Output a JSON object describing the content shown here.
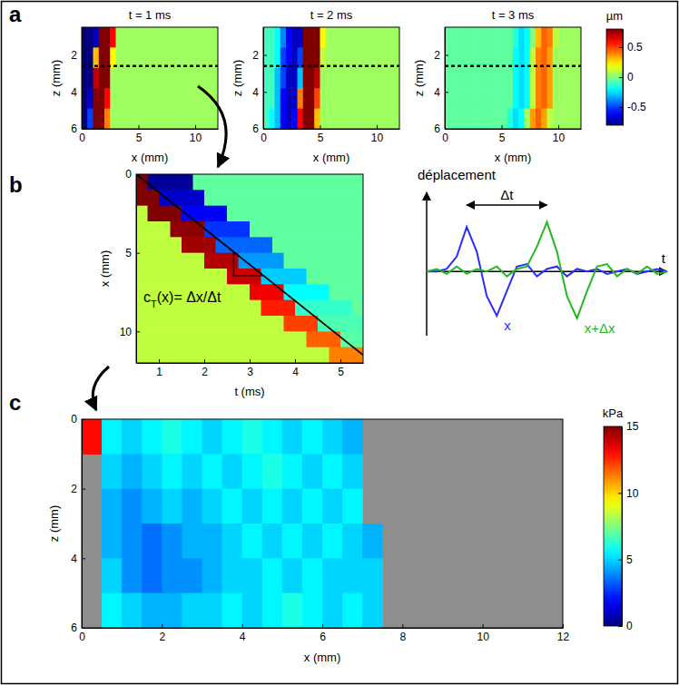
{
  "chart_data": [
    {
      "type": "heatmap",
      "panel": "a",
      "x_label": "x (mm)",
      "y_label": "z (mm)",
      "xlim": [
        0,
        12
      ],
      "ylim": [
        0.5,
        6
      ],
      "xticks": [
        0,
        5,
        10
      ],
      "yticks": [
        2,
        4,
        6
      ],
      "x": [
        0.25,
        0.75,
        1.25,
        1.75,
        2.25,
        2.75,
        3.25,
        3.75,
        4.25,
        4.75,
        5.25,
        5.75,
        6.25,
        6.75,
        7.25,
        7.75,
        8.25,
        8.75,
        9.25,
        9.75,
        10.25,
        10.75,
        11.25,
        11.75
      ],
      "y": [
        1.05,
        2.15,
        3.25,
        4.35,
        5.45
      ],
      "profile_z": 2.6,
      "colorbar": {
        "label": "µm",
        "range": [
          -0.8,
          0.8
        ],
        "ticks": [
          -0.5,
          0,
          0.5
        ]
      },
      "frames": [
        {
          "title": "t = 1 ms",
          "values": [
            [
              -0.8,
              -0.8,
              -0.7,
              0.8,
              0.8,
              0.6,
              0.05,
              0.05,
              0.05,
              0.05,
              0.05,
              0.05,
              0.05,
              0.05,
              0.05,
              0.05,
              0.05,
              0.05,
              0.05,
              0.05,
              0.05,
              0.05,
              0.05,
              0.05
            ],
            [
              -0.8,
              -0.8,
              0.3,
              0.8,
              0.8,
              0.2,
              0.05,
              0.05,
              0.05,
              0.05,
              0.05,
              0.05,
              0.05,
              0.05,
              0.05,
              0.05,
              0.05,
              0.05,
              0.05,
              0.05,
              0.05,
              0.05,
              0.05,
              0.05
            ],
            [
              -0.8,
              -0.8,
              0.7,
              0.8,
              0.8,
              0.05,
              0.05,
              0.05,
              0.05,
              0.05,
              0.05,
              0.05,
              0.05,
              0.05,
              0.05,
              0.05,
              0.05,
              0.05,
              0.05,
              0.05,
              0.05,
              0.05,
              0.05,
              0.05
            ],
            [
              -0.8,
              -0.7,
              0.8,
              0.8,
              0.6,
              0.05,
              0.05,
              0.05,
              0.05,
              0.05,
              0.05,
              0.05,
              0.05,
              0.05,
              0.05,
              0.05,
              0.05,
              0.05,
              0.05,
              0.05,
              0.05,
              0.05,
              0.05,
              0.05
            ],
            [
              -0.8,
              -0.5,
              0.8,
              0.8,
              0.4,
              0.05,
              0.05,
              0.05,
              0.05,
              0.05,
              0.05,
              0.05,
              0.05,
              0.05,
              0.05,
              0.05,
              0.05,
              0.05,
              0.05,
              0.05,
              0.05,
              0.05,
              0.05,
              0.05
            ]
          ]
        },
        {
          "title": "t = 2 ms",
          "values": [
            [
              -0.1,
              -0.1,
              -0.2,
              -0.4,
              -0.6,
              -0.7,
              -0.7,
              0.8,
              0.8,
              0.8,
              0.2,
              0.05,
              0.05,
              0.05,
              0.05,
              0.05,
              0.05,
              0.05,
              0.05,
              0.05,
              0.05,
              0.05,
              0.05,
              0.05
            ],
            [
              -0.1,
              -0.1,
              -0.2,
              -0.5,
              -0.6,
              -0.7,
              -0.5,
              0.8,
              0.8,
              0.8,
              0.1,
              0.05,
              0.05,
              0.05,
              0.05,
              0.05,
              0.05,
              0.05,
              0.05,
              0.05,
              0.05,
              0.05,
              0.05,
              0.05
            ],
            [
              -0.1,
              -0.1,
              -0.3,
              -0.5,
              -0.7,
              -0.7,
              -0.3,
              0.8,
              0.8,
              0.7,
              0.05,
              0.05,
              0.05,
              0.05,
              0.05,
              0.05,
              0.05,
              0.05,
              0.05,
              0.05,
              0.05,
              0.05,
              0.05,
              0.05
            ],
            [
              -0.1,
              -0.1,
              -0.3,
              -0.6,
              -0.7,
              -0.7,
              0.4,
              0.8,
              0.8,
              0.5,
              0.05,
              0.05,
              0.05,
              0.05,
              0.05,
              0.05,
              0.05,
              0.05,
              0.05,
              0.05,
              0.05,
              0.05,
              0.05,
              0.05
            ],
            [
              -0.1,
              -0.2,
              -0.3,
              -0.6,
              -0.7,
              -0.6,
              0.6,
              0.8,
              0.8,
              0.3,
              0.05,
              0.05,
              0.05,
              0.05,
              0.05,
              0.05,
              0.05,
              0.05,
              0.05,
              0.05,
              0.05,
              0.05,
              0.05,
              0.05
            ]
          ]
        },
        {
          "title": "t = 3 ms",
          "values": [
            [
              -0.05,
              -0.05,
              -0.05,
              -0.05,
              -0.05,
              -0.05,
              -0.05,
              -0.05,
              -0.05,
              -0.05,
              -0.05,
              -0.05,
              -0.15,
              -0.25,
              -0.2,
              0.0,
              0.3,
              0.45,
              0.4,
              0.1,
              0.05,
              0.05,
              0.05,
              0.05
            ],
            [
              -0.05,
              -0.05,
              -0.05,
              -0.05,
              -0.05,
              -0.05,
              -0.05,
              -0.05,
              -0.05,
              -0.05,
              -0.05,
              -0.05,
              -0.2,
              -0.25,
              -0.2,
              0.1,
              0.4,
              0.45,
              0.35,
              0.05,
              0.05,
              0.05,
              0.05,
              0.05
            ],
            [
              -0.05,
              -0.05,
              -0.05,
              -0.05,
              -0.05,
              -0.05,
              -0.05,
              -0.05,
              -0.05,
              -0.05,
              -0.05,
              -0.05,
              -0.2,
              -0.25,
              -0.2,
              0.1,
              0.4,
              0.45,
              0.35,
              0.05,
              0.05,
              0.05,
              0.05,
              0.05
            ],
            [
              -0.05,
              -0.05,
              -0.05,
              -0.05,
              -0.05,
              -0.05,
              -0.05,
              -0.05,
              -0.05,
              -0.05,
              -0.05,
              -0.05,
              -0.2,
              -0.25,
              -0.2,
              0.1,
              0.4,
              0.45,
              0.35,
              0.05,
              0.05,
              0.05,
              0.05,
              0.05
            ],
            [
              -0.05,
              -0.05,
              -0.05,
              -0.05,
              -0.05,
              -0.05,
              -0.05,
              -0.05,
              -0.05,
              -0.05,
              -0.05,
              -0.15,
              -0.25,
              -0.2,
              0.05,
              0.35,
              0.45,
              0.35,
              0.1,
              0.05,
              0.05,
              0.05,
              0.05,
              0.05
            ]
          ]
        }
      ]
    },
    {
      "type": "heatmap",
      "panel": "b",
      "x_label": "t (ms)",
      "y_label": "x (mm)",
      "xlim": [
        0.5,
        5.5
      ],
      "ylim": [
        0,
        12
      ],
      "xticks": [
        1,
        2,
        3,
        4,
        5
      ],
      "yticks": [
        0,
        5,
        10
      ],
      "x": [
        0.625,
        0.875,
        1.125,
        1.375,
        1.625,
        1.875,
        2.125,
        2.375,
        2.625,
        2.875,
        3.125,
        3.375,
        3.625,
        3.875,
        4.125,
        4.375,
        4.625,
        4.875,
        5.125,
        5.375
      ],
      "y": [
        0.5,
        1.5,
        2.5,
        3.5,
        4.5,
        5.5,
        6.5,
        7.5,
        8.5,
        9.5,
        10.5,
        11.5
      ],
      "color_range": [
        -0.8,
        0.8
      ],
      "values": [
        [
          0.8,
          -0.76,
          -0.76,
          -0.76,
          -0.76,
          -0.05,
          -0.05,
          -0.05,
          -0.05,
          -0.05,
          -0.05,
          -0.05,
          -0.05,
          -0.05,
          -0.05,
          -0.05,
          -0.05,
          -0.05,
          -0.05,
          -0.05
        ],
        [
          0.8,
          0.8,
          -0.68,
          -0.68,
          -0.68,
          -0.68,
          -0.05,
          -0.05,
          -0.05,
          -0.05,
          -0.05,
          -0.05,
          -0.05,
          -0.05,
          -0.05,
          -0.05,
          -0.05,
          -0.05,
          -0.05,
          -0.05
        ],
        [
          0.1,
          0.8,
          0.8,
          0.8,
          -0.6,
          -0.6,
          -0.6,
          -0.6,
          -0.05,
          -0.05,
          -0.05,
          -0.05,
          -0.05,
          -0.05,
          -0.05,
          -0.05,
          -0.05,
          -0.05,
          -0.05,
          -0.05
        ],
        [
          0.1,
          0.1,
          0.1,
          0.78,
          0.78,
          0.78,
          -0.52,
          -0.52,
          -0.52,
          -0.52,
          -0.05,
          -0.05,
          -0.05,
          -0.05,
          -0.05,
          -0.05,
          -0.05,
          -0.05,
          -0.05,
          -0.05
        ],
        [
          0.1,
          0.1,
          0.1,
          0.1,
          0.75,
          0.75,
          0.75,
          -0.44,
          -0.44,
          -0.44,
          -0.44,
          -0.44,
          -0.05,
          -0.05,
          -0.05,
          -0.05,
          -0.05,
          -0.05,
          -0.05,
          -0.05
        ],
        [
          0.1,
          0.1,
          0.1,
          0.1,
          0.1,
          0.1,
          0.72,
          0.72,
          0.72,
          -0.36,
          -0.36,
          -0.36,
          -0.36,
          -0.05,
          -0.05,
          -0.05,
          -0.05,
          -0.05,
          -0.05,
          -0.05
        ],
        [
          0.1,
          0.1,
          0.1,
          0.1,
          0.1,
          0.1,
          0.1,
          0.1,
          0.68,
          0.68,
          0.68,
          -0.28,
          -0.28,
          -0.28,
          -0.28,
          -0.05,
          -0.05,
          -0.05,
          -0.05,
          -0.05
        ],
        [
          0.1,
          0.1,
          0.1,
          0.1,
          0.1,
          0.1,
          0.1,
          0.1,
          0.1,
          0.1,
          0.62,
          0.62,
          0.62,
          -0.2,
          -0.2,
          -0.2,
          -0.2,
          -0.05,
          -0.05,
          -0.05
        ],
        [
          0.1,
          0.1,
          0.1,
          0.1,
          0.1,
          0.1,
          0.1,
          0.1,
          0.1,
          0.1,
          0.1,
          0.56,
          0.56,
          0.56,
          -0.12,
          -0.12,
          -0.12,
          -0.12,
          -0.12,
          -0.05
        ],
        [
          0.1,
          0.1,
          0.1,
          0.1,
          0.1,
          0.1,
          0.1,
          0.1,
          0.1,
          0.1,
          0.1,
          0.1,
          0.1,
          0.5,
          0.5,
          0.5,
          -0.08,
          -0.08,
          -0.08,
          -0.08
        ],
        [
          0.1,
          0.1,
          0.1,
          0.1,
          0.1,
          0.1,
          0.1,
          0.1,
          0.1,
          0.1,
          0.1,
          0.1,
          0.1,
          0.1,
          0.1,
          0.45,
          0.45,
          0.45,
          -0.06,
          -0.06
        ],
        [
          0.1,
          0.1,
          0.1,
          0.1,
          0.1,
          0.1,
          0.1,
          0.1,
          0.1,
          0.1,
          0.1,
          0.1,
          0.1,
          0.1,
          0.1,
          0.1,
          0.1,
          0.4,
          0.4,
          0.4
        ]
      ],
      "fit_line": {
        "t": [
          0.5,
          5.5
        ],
        "x": [
          0,
          11.5
        ]
      },
      "slope_triangle": {
        "t": [
          2.65,
          3.3
        ]
      },
      "annotation": {
        "symbol": "c",
        "subscript": "T",
        "text": "(x)= Δx/Δt"
      },
      "inset": {
        "type": "line",
        "y_label": "déplacement",
        "x_label": "t",
        "tick_labels": false,
        "xlim": [
          0,
          24
        ],
        "ylim": [
          -1.3,
          1.6
        ],
        "x": [
          0,
          1,
          2,
          3,
          4,
          5,
          6,
          7,
          8,
          9,
          10,
          11,
          12,
          13,
          14,
          15,
          16,
          17,
          18,
          19,
          20,
          21,
          22,
          23,
          24
        ],
        "series": [
          {
            "name": "x",
            "color": "#2b2bff",
            "values": [
              0,
              0,
              0.05,
              0.3,
              0.9,
              0.4,
              -0.5,
              -0.9,
              -0.4,
              0.1,
              0.15,
              -0.1,
              0.05,
              0.1,
              -0.1,
              0.05,
              0,
              0.05,
              -0.05,
              0,
              0.05,
              -0.05,
              0,
              0.05,
              0
            ]
          },
          {
            "name": "x+Δx",
            "color": "#22b822",
            "values": [
              0,
              0.05,
              -0.05,
              0.1,
              -0.05,
              0.05,
              0,
              0.1,
              -0.1,
              0.05,
              0.1,
              0.5,
              1.0,
              0.4,
              -0.5,
              -0.95,
              -0.4,
              0.1,
              0.15,
              -0.1,
              0.05,
              -0.05,
              0.1,
              -0.05,
              0
            ]
          }
        ],
        "delta_t": {
          "label": "Δt",
          "from": 4,
          "to": 12
        }
      }
    },
    {
      "type": "heatmap",
      "panel": "c",
      "x_label": "x (mm)",
      "y_label": "z (mm)",
      "xlim": [
        0,
        12
      ],
      "ylim": [
        0,
        6
      ],
      "xticks": [
        0,
        2,
        4,
        6,
        8,
        10,
        12
      ],
      "yticks": [
        0,
        2,
        4,
        6
      ],
      "x": [
        0.25,
        0.75,
        1.25,
        1.75,
        2.25,
        2.75,
        3.25,
        3.75,
        4.25,
        4.75,
        5.25,
        5.75,
        6.25,
        6.75,
        7.25
      ],
      "y": [
        0.5,
        1.5,
        2.5,
        3.5,
        4.5,
        5.5
      ],
      "colorbar": {
        "label": "kPa",
        "range": [
          0,
          15
        ],
        "ticks": [
          0,
          5,
          10,
          15
        ]
      },
      "values": [
        [
          13,
          5.5,
          5,
          5.5,
          6,
          5.5,
          5,
          5.5,
          6,
          5.5,
          5,
          5.5,
          5,
          4.5,
          null
        ],
        [
          null,
          5,
          4.5,
          5,
          5.5,
          5,
          5.5,
          5,
          5.5,
          6,
          5.5,
          5,
          5.5,
          5,
          null
        ],
        [
          null,
          4.5,
          4,
          4.5,
          5,
          4.5,
          5,
          5.5,
          5,
          5.5,
          5,
          5.5,
          5,
          5.5,
          null
        ],
        [
          null,
          4.5,
          4,
          3.5,
          4,
          4.5,
          4.5,
          5,
          5.5,
          5,
          5.5,
          5,
          5.5,
          5,
          4.5
        ],
        [
          null,
          5,
          4,
          3.5,
          4,
          4,
          4.5,
          5,
          5,
          5.5,
          5,
          5.5,
          5,
          5,
          5
        ],
        [
          null,
          5.5,
          5,
          4.5,
          4.5,
          5,
          5,
          5.5,
          5,
          5.5,
          6,
          5.5,
          5,
          5.5,
          5
        ]
      ]
    }
  ]
}
